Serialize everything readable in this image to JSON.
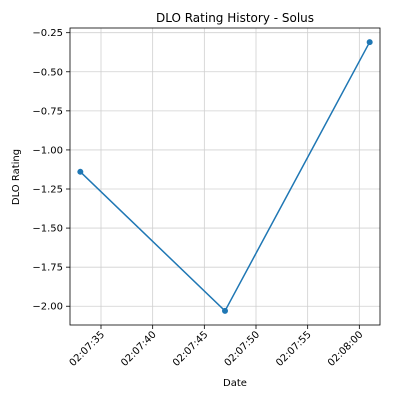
{
  "chart_data": {
    "type": "line",
    "title": "DLO Rating History - Solus",
    "xlabel": "Date",
    "ylabel": "DLO Rating",
    "x": [
      "02:07:33",
      "02:07:47",
      "02:08:01"
    ],
    "series": [
      {
        "values": [
          -1.14,
          -2.03,
          -0.31
        ],
        "color": "#1f77b4"
      }
    ],
    "x_ticks": [
      "02:07:35",
      "02:07:40",
      "02:07:45",
      "02:07:50",
      "02:07:55",
      "02:08:00"
    ],
    "y_ticks": [
      -0.25,
      -0.5,
      -0.75,
      -1.0,
      -1.25,
      -1.5,
      -1.75,
      -2.0
    ],
    "y_tick_labels": [
      "−0.25",
      "−0.50",
      "−0.75",
      "−1.00",
      "−1.25",
      "−1.50",
      "−1.75",
      "−2.00"
    ],
    "xlim": [
      "02:07:32",
      "02:08:02"
    ],
    "ylim": [
      -2.12,
      -0.22
    ],
    "grid": true
  }
}
